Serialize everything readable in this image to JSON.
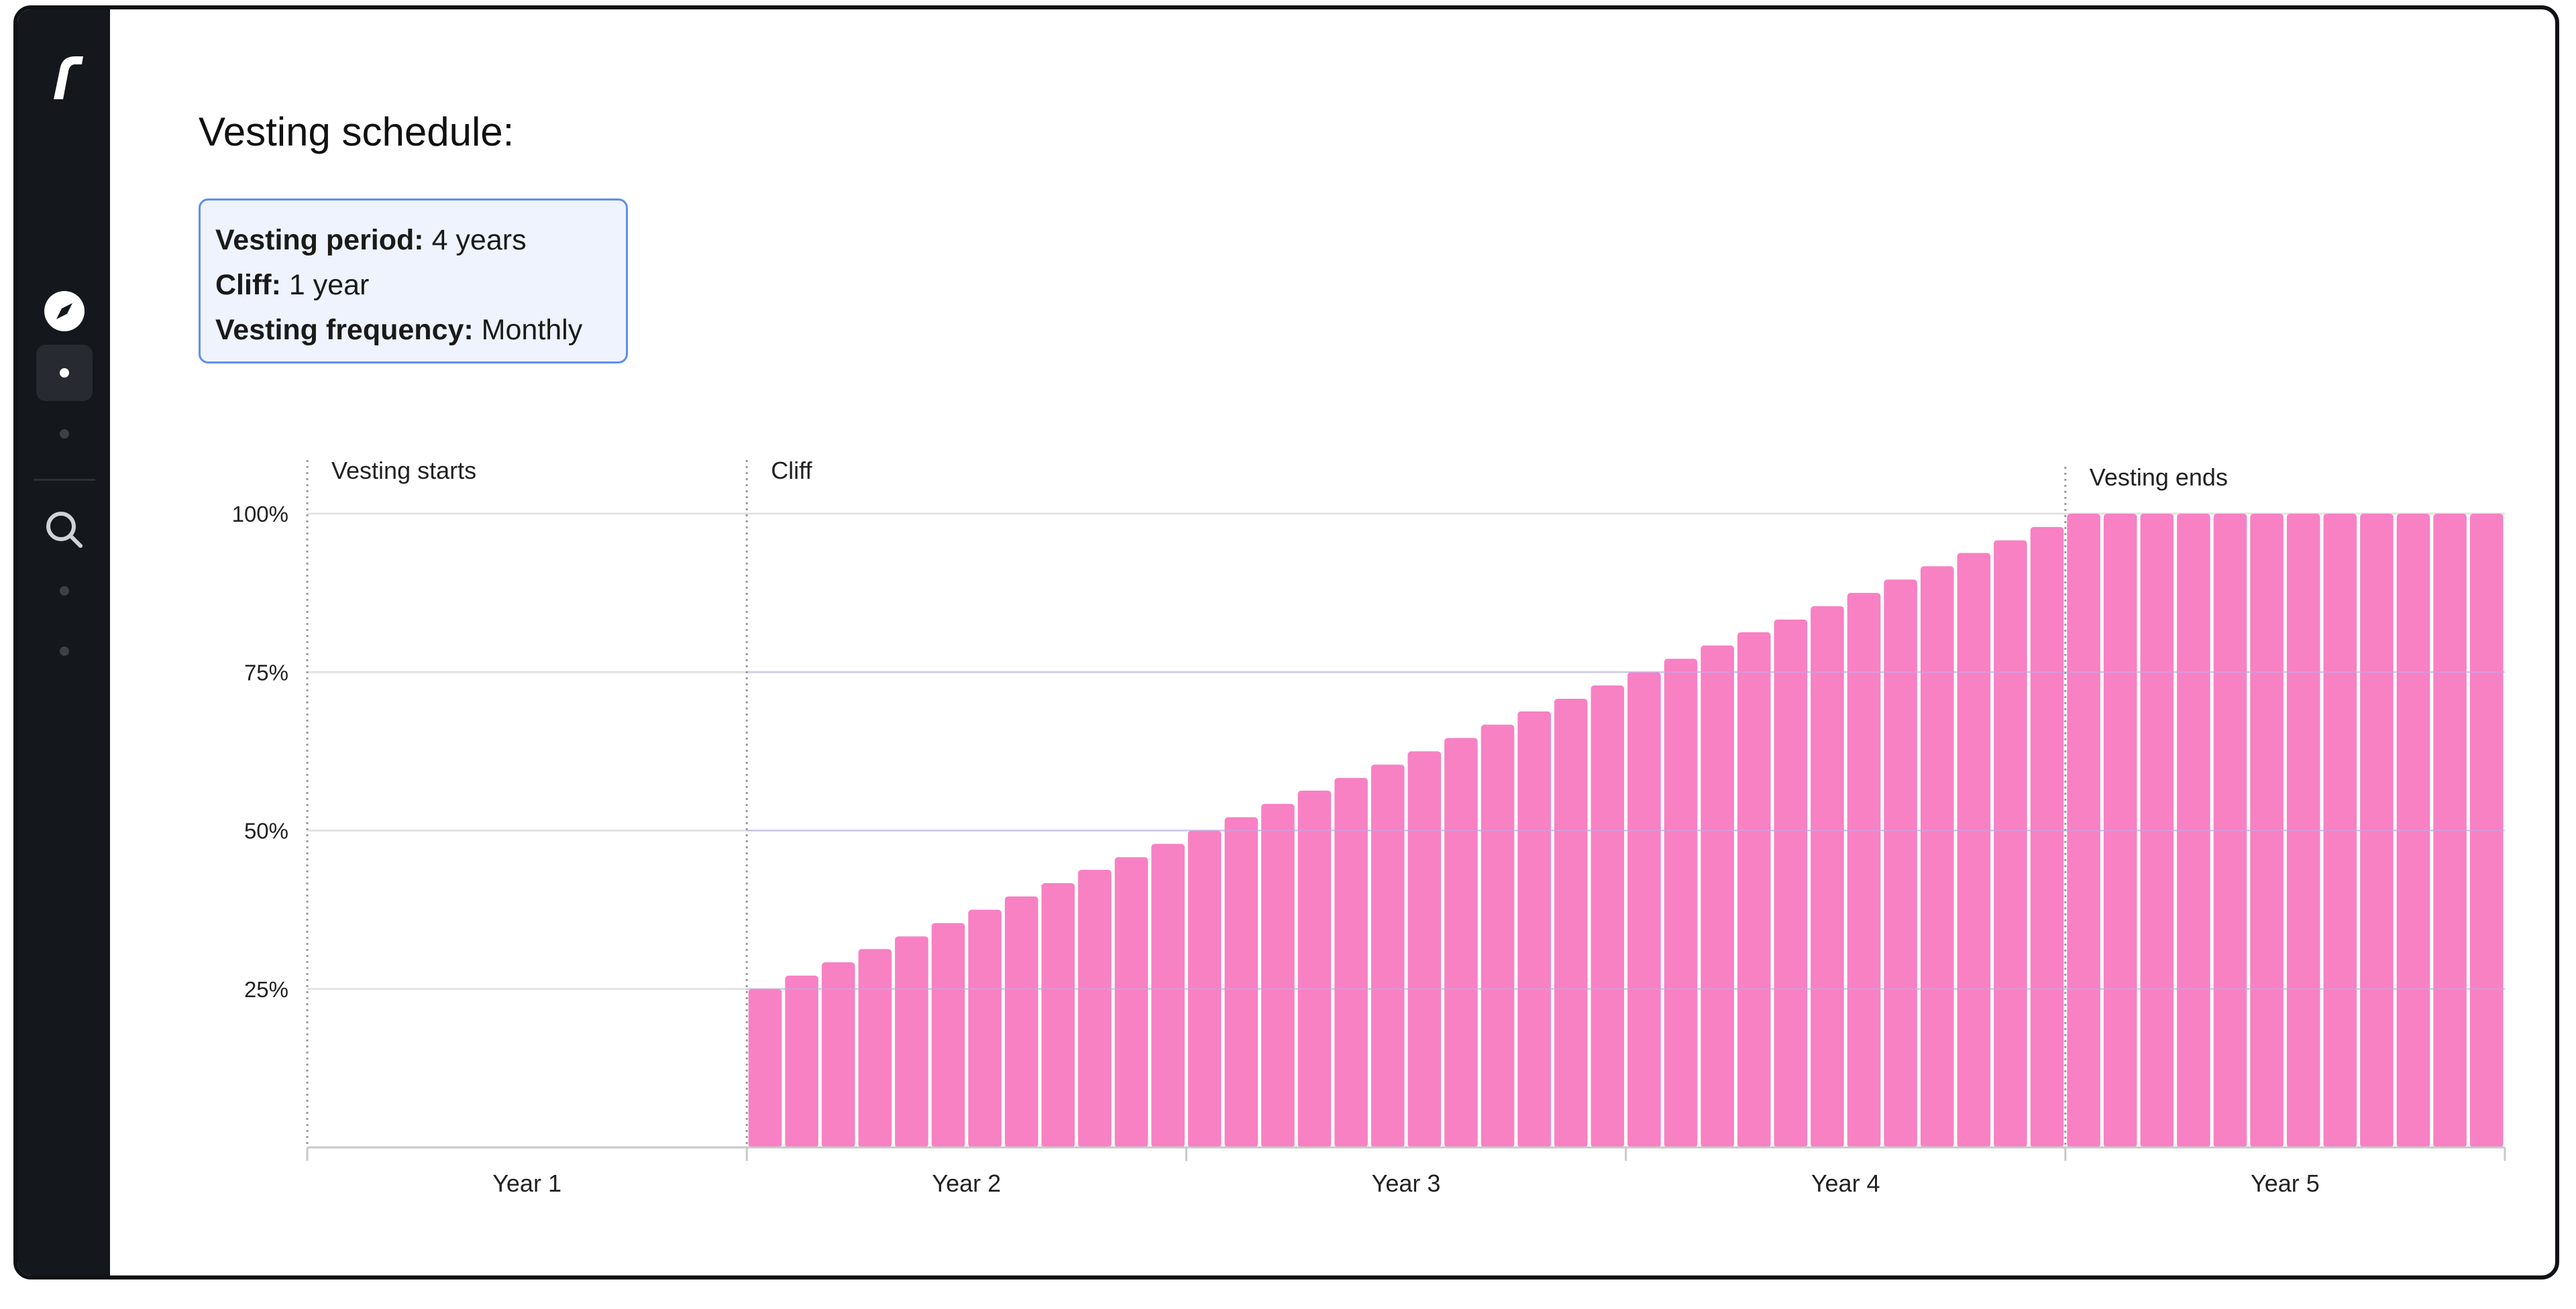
{
  "app": {
    "nav": [
      {
        "name": "explore",
        "icon": "compass-icon"
      },
      {
        "name": "search",
        "icon": "search-icon"
      }
    ]
  },
  "page": {
    "title": "Vesting schedule:"
  },
  "info": {
    "period_label": "Vesting period:",
    "period_value": "4 years",
    "cliff_label": "Cliff:",
    "cliff_value": "1 year",
    "frequency_label": "Vesting frequency:",
    "frequency_value": "Monthly"
  },
  "colors": {
    "bar": "#f781c3",
    "box_border": "#5f8ef0",
    "box_bg": "#eef3fd",
    "sidebar": "#14171b"
  },
  "chart_data": {
    "type": "bar",
    "ylim": [
      0,
      100
    ],
    "yticks": [
      {
        "value": 25,
        "label": "25%"
      },
      {
        "value": 50,
        "label": "50%"
      },
      {
        "value": 75,
        "label": "75%"
      },
      {
        "value": 100,
        "label": "100%"
      }
    ],
    "xlabels": [
      "Year 1",
      "Year 2",
      "Year 3",
      "Year 4",
      "Year 5"
    ],
    "markers": [
      {
        "label": "Vesting starts",
        "month": 0
      },
      {
        "label": "Cliff",
        "month": 12
      },
      {
        "label": "Vesting ends",
        "month": 48
      }
    ],
    "months_total": 60,
    "values": [
      0,
      0,
      0,
      0,
      0,
      0,
      0,
      0,
      0,
      0,
      0,
      0,
      25,
      27.1,
      29.2,
      31.3,
      33.3,
      35.4,
      37.5,
      39.6,
      41.7,
      43.8,
      45.8,
      47.9,
      50,
      52.1,
      54.2,
      56.3,
      58.3,
      60.4,
      62.5,
      64.6,
      66.7,
      68.8,
      70.8,
      72.9,
      75,
      77.1,
      79.2,
      81.3,
      83.3,
      85.4,
      87.5,
      89.6,
      91.7,
      93.8,
      95.8,
      97.9,
      100,
      100,
      100,
      100,
      100,
      100,
      100,
      100,
      100,
      100,
      100,
      100
    ],
    "grid": true,
    "legend": "none"
  }
}
